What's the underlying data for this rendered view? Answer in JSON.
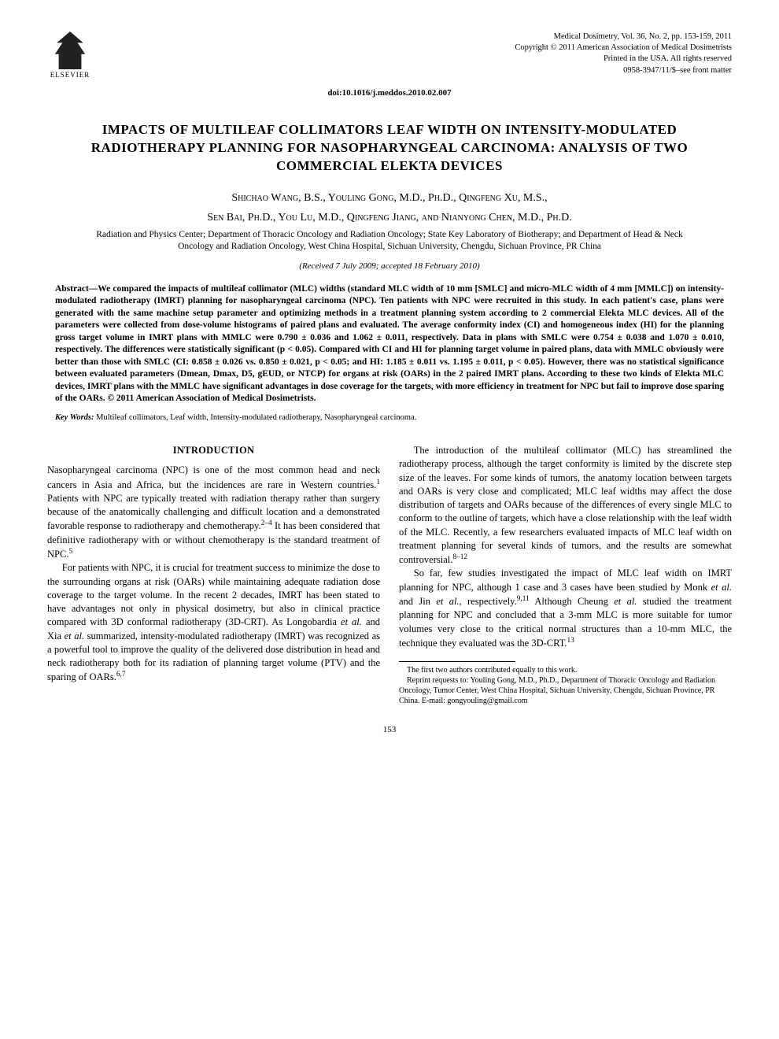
{
  "header": {
    "publisher_logo_text": "ELSEVIER",
    "meta_line1": "Medical Dosimetry, Vol. 36, No. 2, pp. 153-159, 2011",
    "meta_line2": "Copyright © 2011 American Association of Medical Dosimetrists",
    "meta_line3": "Printed in the USA. All rights reserved",
    "meta_line4": "0958-3947/11/$–see front matter",
    "doi": "doi:10.1016/j.meddos.2010.02.007"
  },
  "title": "IMPACTS OF MULTILEAF COLLIMATORS LEAF WIDTH ON INTENSITY-MODULATED RADIOTHERAPY PLANNING FOR NASOPHARYNGEAL CARCINOMA: ANALYSIS OF TWO COMMERCIAL ELEKTA DEVICES",
  "authors_line1": "Shichao Wang, B.S., Youling Gong, M.D., Ph.D., Qingfeng Xu, M.S.,",
  "authors_line2": "Sen Bai, Ph.D., You Lu, M.D., Qingfeng Jiang, and Nianyong Chen, M.D., Ph.D.",
  "affiliations": "Radiation and Physics Center; Department of Thoracic Oncology and Radiation Oncology; State Key Laboratory of Biotherapy; and Department of Head & Neck Oncology and Radiation Oncology, West China Hospital, Sichuan University, Chengdu, Sichuan Province, PR China",
  "dates": "(Received 7 July 2009; accepted 18 February 2010)",
  "abstract": "Abstract—We compared the impacts of multileaf collimator (MLC) widths (standard MLC width of 10 mm [SMLC] and micro-MLC width of 4 mm [MMLC]) on intensity-modulated radiotherapy (IMRT) planning for nasopharyngeal carcinoma (NPC). Ten patients with NPC were recruited in this study. In each patient's case, plans were generated with the same machine setup parameter and optimizing methods in a treatment planning system according to 2 commercial Elekta MLC devices. All of the parameters were collected from dose-volume histograms of paired plans and evaluated. The average conformity index (CI) and homogeneous index (HI) for the planning gross target volume in IMRT plans with MMLC were 0.790 ± 0.036 and 1.062 ± 0.011, respectively. Data in plans with SMLC were 0.754 ± 0.038 and 1.070 ± 0.010, respectively. The differences were statistically significant (p < 0.05). Compared with CI and HI for planning target volume in paired plans, data with MMLC obviously were better than those with SMLC (CI: 0.858 ± 0.026 vs. 0.850 ± 0.021, p < 0.05; and HI: 1.185 ± 0.011 vs. 1.195 ± 0.011, p < 0.05). However, there was no statistical significance between evaluated parameters (Dmean, Dmax, D5, gEUD, or NTCP) for organs at risk (OARs) in the 2 paired IMRT plans. According to these two kinds of Elekta MLC devices, IMRT plans with the MMLC have significant advantages in dose coverage for the targets, with more efficiency in treatment for NPC but fail to improve dose sparing of the OARs.   © 2011 American Association of Medical Dosimetrists.",
  "keywords_label": "Key Words:",
  "keywords": " Multileaf collimators, Leaf width, Intensity-modulated radiotherapy, Nasopharyngeal carcinoma.",
  "section_heading": "INTRODUCTION",
  "body": {
    "p1a": "Nasopharyngeal carcinoma (NPC) is one of the most common head and neck cancers in Asia and Africa, but the incidences are rare in Western countries.",
    "p1_ref1": "1",
    "p1b": " Patients with NPC are typically treated with radiation therapy rather than surgery because of the anatomically challenging and difficult location and a demonstrated favorable response to radiotherapy and chemotherapy.",
    "p1_ref2": "2–4",
    "p1c": " It has been considered that definitive radiotherapy with or without chemotherapy is the standard treatment of NPC.",
    "p1_ref3": "5",
    "p2a": "For patients with NPC, it is crucial for treatment success to minimize the dose to the surrounding organs at risk (OARs) while maintaining adequate radiation dose coverage to the target volume. In the recent 2 decades, IMRT has been stated to have advantages not only in physical dosimetry, but also in clinical practice compared with 3D conformal radiotherapy (3D-CRT). As Longobardia ",
    "p2_etal1": "et al.",
    "p2b": " and Xia ",
    "p2_etal2": "et al.",
    "p2c": " summarized, intensity-modulated radiotherapy (IMRT) was recognized as a powerful tool to improve the quality of the delivered dose distribution in head and neck radiotherapy both for its radiation of planning target volume (PTV) and the sparing of OARs.",
    "p2_ref": "6,7",
    "p3a": "The introduction of the multileaf collimator (MLC) has streamlined the radiotherapy process, although the target conformity is limited by the discrete step size of the leaves. For some kinds of tumors, the anatomy location between targets and OARs is very close and complicated; MLC leaf widths may affect the dose distribution of targets and OARs because of the differences of every single MLC to conform to the outline of targets, which have a close relationship with the leaf width of the MLC. Recently, a few researchers evaluated impacts of MLC leaf width on treatment planning for several kinds of tumors, and the results are somewhat controversial.",
    "p3_ref": "8–12",
    "p4a": "So far, few studies investigated the impact of MLC leaf width on IMRT planning for NPC, although 1 case and 3 cases have been studied by Monk ",
    "p4_etal1": "et al.",
    "p4b": " and Jin ",
    "p4_etal2": "et al.",
    "p4c": ", respectively.",
    "p4_ref1": "9,11",
    "p4d": " Although Cheung ",
    "p4_etal3": "et al.",
    "p4e": " studied the treatment planning for NPC and concluded that a 3-mm MLC is more suitable for tumor volumes very close to the critical normal structures than a 10-mm MLC, the technique they evaluated was the 3D-CRT.",
    "p4_ref2": "13"
  },
  "footnotes": {
    "f1": "The first two authors contributed equally to this work.",
    "f2": "Reprint requests to: Youling Gong, M.D., Ph.D., Department of Thoracic Oncology and Radiation Oncology, Tumor Center, West China Hospital, Sichuan University, Chengdu, Sichuan Province, PR China. E-mail: gongyouling@gmail.com"
  },
  "page_number": "153",
  "colors": {
    "text": "#000000",
    "background": "#ffffff"
  },
  "fonts": {
    "body_family": "Georgia, Times New Roman, serif",
    "title_size_pt": 13,
    "body_size_pt": 9.5,
    "abstract_size_pt": 8.5,
    "footnote_size_pt": 7.5
  }
}
